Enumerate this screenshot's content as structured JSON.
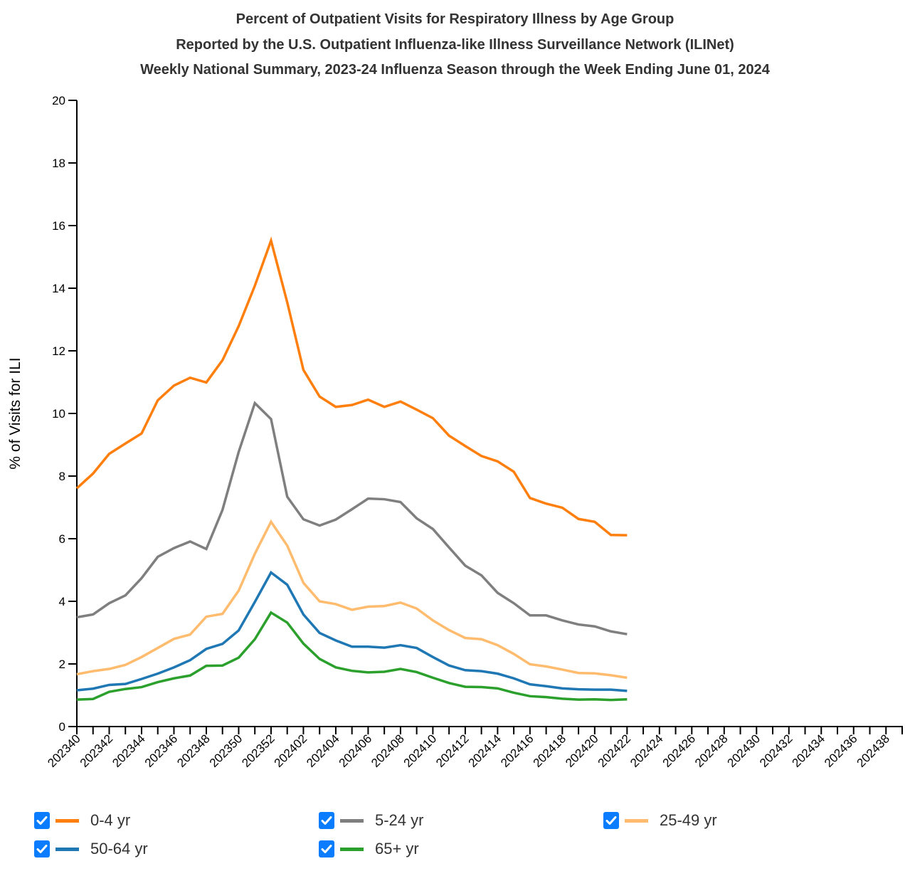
{
  "titles": {
    "line1": "Percent of Outpatient Visits for Respiratory Illness by Age Group",
    "line2": "Reported by the U.S. Outpatient Influenza-like Illness Surveillance Network (ILINet)",
    "line3": "Weekly National Summary, 2023-24 Influenza Season through the Week Ending June 01, 2024"
  },
  "legend": [
    {
      "label": "0-4 yr",
      "color": "#ff7f0e",
      "checked": true
    },
    {
      "label": "5-24 yr",
      "color": "#7f7f7f",
      "checked": true
    },
    {
      "label": "25-49 yr",
      "color": "#ffbb6e",
      "checked": true
    },
    {
      "label": "50-64 yr",
      "color": "#1f77b4",
      "checked": true
    },
    {
      "label": "65+ yr",
      "color": "#2ca02c",
      "checked": true
    }
  ],
  "chart_data": {
    "type": "line",
    "title": "Percent of Outpatient Visits for Respiratory Illness by Age Group",
    "xlabel": "",
    "ylabel": "% of Visits for ILI",
    "ylim": [
      0,
      20
    ],
    "yticks": [
      0,
      2,
      4,
      6,
      8,
      10,
      12,
      14,
      16,
      18,
      20
    ],
    "grid": false,
    "legend_position": "bottom",
    "x": [
      "202340",
      "202341",
      "202342",
      "202343",
      "202344",
      "202345",
      "202346",
      "202347",
      "202348",
      "202349",
      "202350",
      "202351",
      "202352",
      "202401",
      "202402",
      "202403",
      "202404",
      "202405",
      "202406",
      "202407",
      "202408",
      "202409",
      "202410",
      "202411",
      "202412",
      "202413",
      "202414",
      "202415",
      "202416",
      "202417",
      "202418",
      "202419",
      "202420",
      "202421",
      "202422",
      "202423",
      "202424",
      "202425",
      "202426",
      "202427",
      "202428",
      "202429",
      "202430",
      "202431",
      "202432",
      "202433",
      "202434",
      "202435",
      "202436",
      "202437",
      "202438",
      "202439"
    ],
    "xtick_labels": [
      "202340",
      "202342",
      "202344",
      "202346",
      "202348",
      "202350",
      "202352",
      "202402",
      "202404",
      "202406",
      "202408",
      "202410",
      "202412",
      "202414",
      "202416",
      "202418",
      "202420",
      "202422",
      "202424",
      "202426",
      "202428",
      "202430",
      "202432",
      "202434",
      "202436",
      "202438"
    ],
    "series": [
      {
        "name": "0-4 yr",
        "color": "#ff7f0e",
        "values": [
          7.61,
          8.08,
          8.71,
          9.04,
          9.36,
          10.42,
          10.89,
          11.14,
          10.99,
          11.7,
          12.79,
          14.08,
          15.52,
          13.55,
          11.39,
          10.54,
          10.21,
          10.27,
          10.44,
          10.21,
          10.38,
          10.12,
          9.85,
          9.29,
          8.96,
          8.64,
          8.47,
          8.14,
          7.3,
          7.12,
          6.99,
          6.63,
          6.54,
          6.12,
          6.11
        ]
      },
      {
        "name": "5-24 yr",
        "color": "#7f7f7f",
        "values": [
          3.49,
          3.58,
          3.94,
          4.19,
          4.74,
          5.42,
          5.7,
          5.91,
          5.67,
          6.92,
          8.77,
          10.33,
          9.82,
          7.34,
          6.62,
          6.42,
          6.61,
          6.94,
          7.28,
          7.26,
          7.17,
          6.65,
          6.31,
          5.72,
          5.14,
          4.83,
          4.27,
          3.94,
          3.55,
          3.55,
          3.39,
          3.26,
          3.2,
          3.04,
          2.95
        ]
      },
      {
        "name": "25-49 yr",
        "color": "#ffbb6e",
        "values": [
          1.67,
          1.77,
          1.84,
          1.97,
          2.22,
          2.51,
          2.8,
          2.94,
          3.51,
          3.6,
          4.34,
          5.52,
          6.54,
          5.78,
          4.59,
          4.0,
          3.91,
          3.73,
          3.83,
          3.85,
          3.96,
          3.77,
          3.39,
          3.08,
          2.83,
          2.79,
          2.6,
          2.32,
          1.99,
          1.92,
          1.82,
          1.71,
          1.7,
          1.64,
          1.56
        ]
      },
      {
        "name": "50-64 yr",
        "color": "#1f77b4",
        "values": [
          1.16,
          1.21,
          1.33,
          1.36,
          1.52,
          1.69,
          1.89,
          2.12,
          2.48,
          2.64,
          3.07,
          3.98,
          4.92,
          4.53,
          3.58,
          2.99,
          2.75,
          2.55,
          2.55,
          2.52,
          2.6,
          2.51,
          2.22,
          1.95,
          1.8,
          1.77,
          1.69,
          1.54,
          1.35,
          1.29,
          1.22,
          1.19,
          1.18,
          1.18,
          1.14
        ]
      },
      {
        "name": "65+ yr",
        "color": "#2ca02c",
        "values": [
          0.86,
          0.88,
          1.11,
          1.2,
          1.26,
          1.42,
          1.54,
          1.63,
          1.94,
          1.95,
          2.2,
          2.79,
          3.64,
          3.32,
          2.65,
          2.16,
          1.89,
          1.78,
          1.73,
          1.75,
          1.84,
          1.74,
          1.56,
          1.39,
          1.27,
          1.26,
          1.22,
          1.08,
          0.97,
          0.94,
          0.89,
          0.86,
          0.87,
          0.85,
          0.87
        ]
      }
    ]
  }
}
